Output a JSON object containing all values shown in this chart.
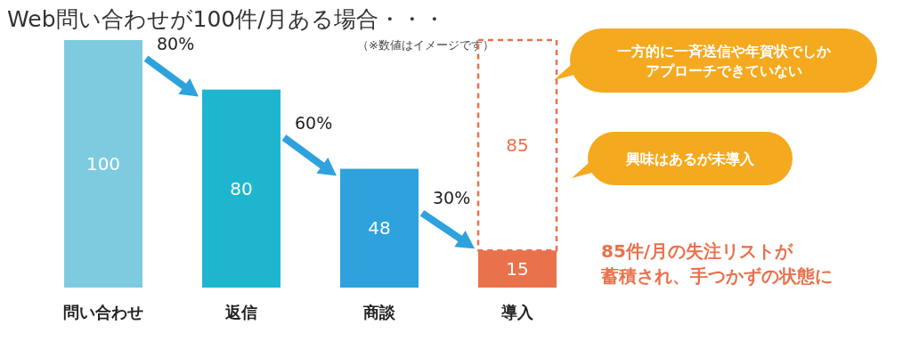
{
  "chart_data": {
    "type": "bar",
    "title": "Web問い合わせが100件/月ある場合・・・",
    "subtitle": "（※数値はイメージです）",
    "categories": [
      "問い合わせ",
      "返信",
      "商談",
      "導入"
    ],
    "stacked": true,
    "data_labels": true,
    "series": [
      {
        "values": [
          100,
          80,
          48,
          15
        ],
        "colors": [
          "#7ecbe0",
          "#1eb6cf",
          "#2ea2dc",
          "#e9714c"
        ]
      },
      {
        "values": [
          null,
          null,
          null,
          85
        ],
        "color": "#e9714c",
        "line_style": "dashed"
      }
    ],
    "annotations": [
      "80%",
      "60%",
      "30%",
      "一方的に一斉送信や年賀状でしか",
      "アプローチできていない",
      "興味はあるが未導入",
      "85件/月の失注リストが",
      "蓄積され、手つかずの状態に"
    ]
  }
}
